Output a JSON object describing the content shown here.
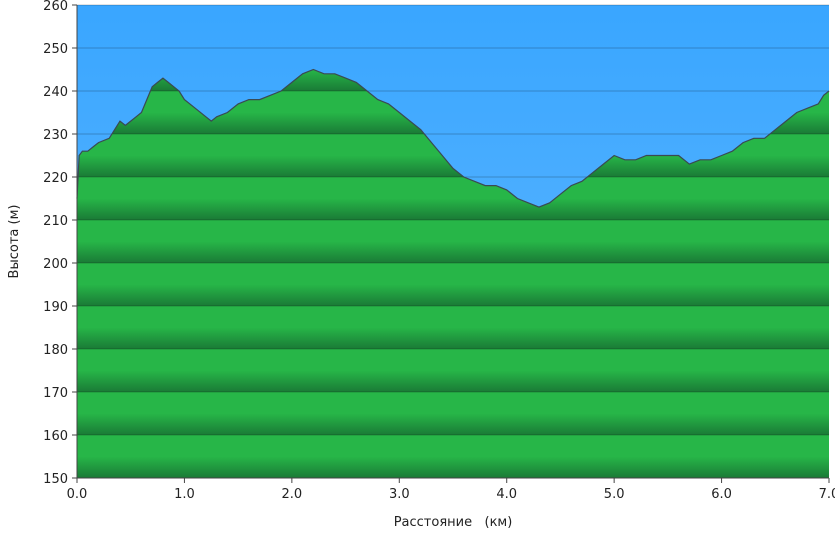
{
  "chart_data": {
    "type": "area",
    "title": "",
    "xlabel": "Расстояние   (км)",
    "ylabel": "Высота (м)",
    "xlim": [
      0,
      7.0
    ],
    "ylim": [
      150,
      260
    ],
    "x_ticks": [
      0,
      1,
      2,
      3,
      4,
      5,
      6,
      7
    ],
    "x_tick_labels": [
      "0.0",
      "1.0",
      "2.0",
      "3.0",
      "4.0",
      "5.0",
      "6.0",
      "7.0"
    ],
    "y_ticks": [
      150,
      160,
      170,
      180,
      190,
      200,
      210,
      220,
      230,
      240,
      250,
      260
    ],
    "y_tick_labels": [
      "150",
      "160",
      "170",
      "180",
      "190",
      "200",
      "210",
      "220",
      "230",
      "240",
      "250",
      "260"
    ],
    "grid": true,
    "colors": {
      "sky_top": "#39a6ff",
      "sky_bottom": "#63b8ff",
      "fill_light": "#27b648",
      "fill_dark": "#1a7a36",
      "line": "#3a4a52"
    },
    "series": [
      {
        "x": [
          0.0,
          0.02,
          0.05,
          0.1,
          0.15,
          0.2,
          0.3,
          0.35,
          0.4,
          0.45,
          0.5,
          0.55,
          0.6,
          0.65,
          0.7,
          0.75,
          0.8,
          0.85,
          0.9,
          0.95,
          1.0,
          1.1,
          1.2,
          1.25,
          1.3,
          1.4,
          1.5,
          1.6,
          1.7,
          1.8,
          1.9,
          2.0,
          2.1,
          2.2,
          2.3,
          2.4,
          2.5,
          2.6,
          2.7,
          2.8,
          2.9,
          3.0,
          3.1,
          3.2,
          3.3,
          3.4,
          3.5,
          3.6,
          3.7,
          3.8,
          3.9,
          4.0,
          4.1,
          4.2,
          4.3,
          4.4,
          4.5,
          4.6,
          4.7,
          4.8,
          4.9,
          5.0,
          5.1,
          5.2,
          5.3,
          5.4,
          5.5,
          5.6,
          5.7,
          5.8,
          5.9,
          6.0,
          6.1,
          6.2,
          6.3,
          6.4,
          6.5,
          6.6,
          6.7,
          6.8,
          6.9,
          6.95,
          7.0
        ],
        "y": [
          215,
          225,
          226,
          226,
          227,
          228,
          229,
          231,
          233,
          232,
          233,
          234,
          235,
          238,
          241,
          242,
          243,
          242,
          241,
          240,
          238,
          236,
          234,
          233,
          234,
          235,
          237,
          238,
          238,
          239,
          240,
          242,
          244,
          245,
          244,
          244,
          243,
          242,
          240,
          238,
          237,
          235,
          233,
          231,
          228,
          225,
          222,
          220,
          219,
          218,
          218,
          217,
          215,
          214,
          213,
          214,
          216,
          218,
          219,
          221,
          223,
          225,
          224,
          224,
          225,
          225,
          225,
          225,
          223,
          224,
          224,
          225,
          226,
          228,
          229,
          229,
          231,
          233,
          235,
          236,
          237,
          239,
          240
        ]
      }
    ]
  }
}
